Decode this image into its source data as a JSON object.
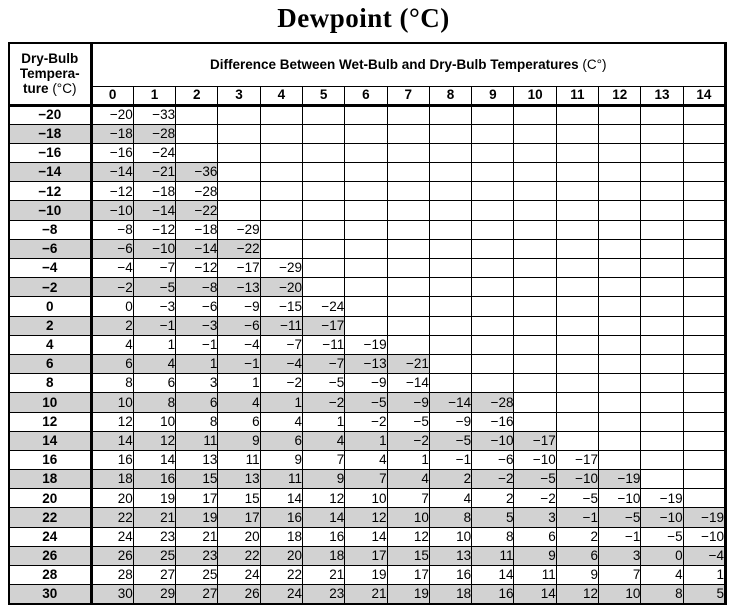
{
  "title": "Dewpoint (°C)",
  "colors": {
    "shaded_row": "#d2d2d2",
    "border": "#000000",
    "background": "#ffffff"
  },
  "table": {
    "row_header": {
      "line1": "Dry-Bulb",
      "line2": "Tempera-",
      "line3_bold": "ture ",
      "line3_unit": "(°C)"
    },
    "group_header": {
      "text": "Difference Between Wet-Bulb and Dry-Bulb Temperatures ",
      "unit": "(C°)"
    },
    "columns": [
      "0",
      "1",
      "2",
      "3",
      "4",
      "5",
      "6",
      "7",
      "8",
      "9",
      "10",
      "11",
      "12",
      "13",
      "14"
    ],
    "rows": [
      {
        "temp": "−20",
        "shaded": false,
        "values": [
          "−20",
          "−33"
        ]
      },
      {
        "temp": "−18",
        "shaded": true,
        "values": [
          "−18",
          "−28"
        ]
      },
      {
        "temp": "−16",
        "shaded": false,
        "values": [
          "−16",
          "−24"
        ]
      },
      {
        "temp": "−14",
        "shaded": true,
        "values": [
          "−14",
          "−21",
          "−36"
        ]
      },
      {
        "temp": "−12",
        "shaded": false,
        "values": [
          "−12",
          "−18",
          "−28"
        ]
      },
      {
        "temp": "−10",
        "shaded": true,
        "values": [
          "−10",
          "−14",
          "−22"
        ]
      },
      {
        "temp": "−8",
        "shaded": false,
        "values": [
          "−8",
          "−12",
          "−18",
          "−29"
        ]
      },
      {
        "temp": "−6",
        "shaded": true,
        "values": [
          "−6",
          "−10",
          "−14",
          "−22"
        ]
      },
      {
        "temp": "−4",
        "shaded": false,
        "values": [
          "−4",
          "−7",
          "−12",
          "−17",
          "−29"
        ]
      },
      {
        "temp": "−2",
        "shaded": true,
        "values": [
          "−2",
          "−5",
          "−8",
          "−13",
          "−20"
        ]
      },
      {
        "temp": "0",
        "shaded": false,
        "values": [
          "0",
          "−3",
          "−6",
          "−9",
          "−15",
          "−24"
        ]
      },
      {
        "temp": "2",
        "shaded": true,
        "values": [
          "2",
          "−1",
          "−3",
          "−6",
          "−11",
          "−17"
        ]
      },
      {
        "temp": "4",
        "shaded": false,
        "values": [
          "4",
          "1",
          "−1",
          "−4",
          "−7",
          "−11",
          "−19"
        ]
      },
      {
        "temp": "6",
        "shaded": true,
        "values": [
          "6",
          "4",
          "1",
          "−1",
          "−4",
          "−7",
          "−13",
          "−21"
        ]
      },
      {
        "temp": "8",
        "shaded": false,
        "values": [
          "8",
          "6",
          "3",
          "1",
          "−2",
          "−5",
          "−9",
          "−14"
        ]
      },
      {
        "temp": "10",
        "shaded": true,
        "values": [
          "10",
          "8",
          "6",
          "4",
          "1",
          "−2",
          "−5",
          "−9",
          "−14",
          "−28"
        ]
      },
      {
        "temp": "12",
        "shaded": false,
        "values": [
          "12",
          "10",
          "8",
          "6",
          "4",
          "1",
          "−2",
          "−5",
          "−9",
          "−16"
        ]
      },
      {
        "temp": "14",
        "shaded": true,
        "values": [
          "14",
          "12",
          "11",
          "9",
          "6",
          "4",
          "1",
          "−2",
          "−5",
          "−10",
          "−17"
        ]
      },
      {
        "temp": "16",
        "shaded": false,
        "values": [
          "16",
          "14",
          "13",
          "11",
          "9",
          "7",
          "4",
          "1",
          "−1",
          "−6",
          "−10",
          "−17"
        ]
      },
      {
        "temp": "18",
        "shaded": true,
        "values": [
          "18",
          "16",
          "15",
          "13",
          "11",
          "9",
          "7",
          "4",
          "2",
          "−2",
          "−5",
          "−10",
          "−19"
        ]
      },
      {
        "temp": "20",
        "shaded": false,
        "values": [
          "20",
          "19",
          "17",
          "15",
          "14",
          "12",
          "10",
          "7",
          "4",
          "2",
          "−2",
          "−5",
          "−10",
          "−19"
        ]
      },
      {
        "temp": "22",
        "shaded": true,
        "values": [
          "22",
          "21",
          "19",
          "17",
          "16",
          "14",
          "12",
          "10",
          "8",
          "5",
          "3",
          "−1",
          "−5",
          "−10",
          "−19"
        ]
      },
      {
        "temp": "24",
        "shaded": false,
        "values": [
          "24",
          "23",
          "21",
          "20",
          "18",
          "16",
          "14",
          "12",
          "10",
          "8",
          "6",
          "2",
          "−1",
          "−5",
          "−10"
        ]
      },
      {
        "temp": "26",
        "shaded": true,
        "values": [
          "26",
          "25",
          "23",
          "22",
          "20",
          "18",
          "17",
          "15",
          "13",
          "11",
          "9",
          "6",
          "3",
          "0",
          "−4"
        ]
      },
      {
        "temp": "28",
        "shaded": false,
        "values": [
          "28",
          "27",
          "25",
          "24",
          "22",
          "21",
          "19",
          "17",
          "16",
          "14",
          "11",
          "9",
          "7",
          "4",
          "1"
        ]
      },
      {
        "temp": "30",
        "shaded": true,
        "values": [
          "30",
          "29",
          "27",
          "26",
          "24",
          "23",
          "21",
          "19",
          "18",
          "16",
          "14",
          "12",
          "10",
          "8",
          "5"
        ]
      }
    ]
  }
}
